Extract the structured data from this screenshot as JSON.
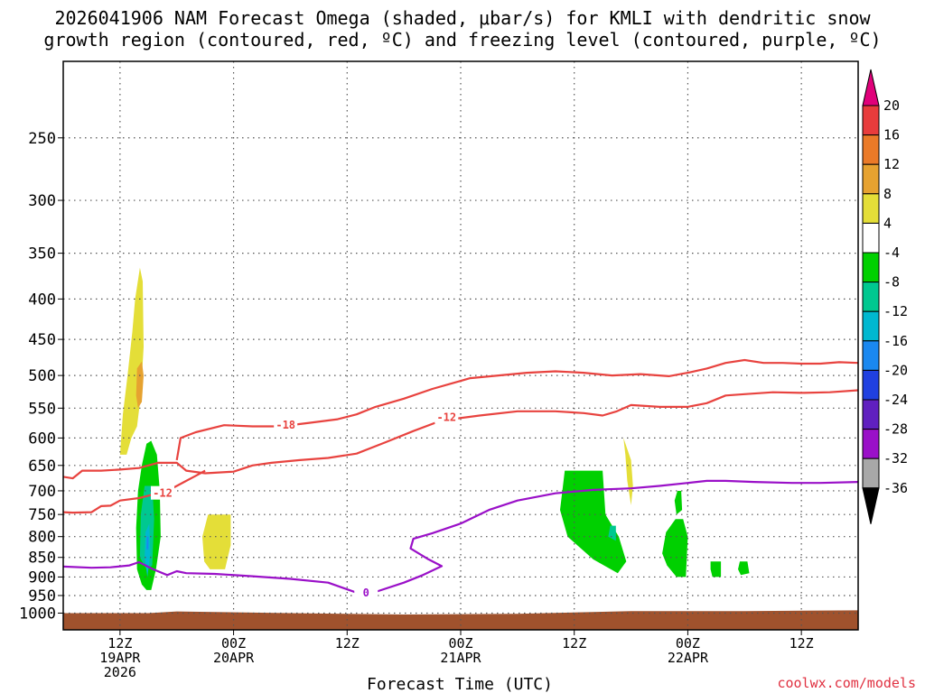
{
  "chart_data": {
    "type": "heatmap",
    "title_lines": [
      "2026041906 NAM Forecast Omega (shaded, μbar/s) for KMLI with dendritic snow",
      "growth region (contoured, red, ºC) and freezing level (contoured, purple, ºC)"
    ],
    "xlabel": "Forecast Time (UTC)",
    "credit": "coolwx.com/models",
    "x_unit": "forecast hour from 2026-04-19 06Z",
    "xlim": [
      0,
      84
    ],
    "x_ticks": [
      {
        "hour": 6,
        "lines": [
          "12Z",
          "19APR",
          "2026"
        ]
      },
      {
        "hour": 18,
        "lines": [
          "00Z",
          "20APR"
        ]
      },
      {
        "hour": 30,
        "lines": [
          "12Z"
        ]
      },
      {
        "hour": 42,
        "lines": [
          "00Z",
          "21APR"
        ]
      },
      {
        "hour": 54,
        "lines": [
          "12Z"
        ]
      },
      {
        "hour": 66,
        "lines": [
          "00Z",
          "22APR"
        ]
      },
      {
        "hour": 78,
        "lines": [
          "12Z"
        ]
      }
    ],
    "y_unit": "hPa",
    "y_scale": "log",
    "ylim": [
      1050,
      200
    ],
    "y_ticks": [
      250,
      300,
      350,
      400,
      450,
      500,
      550,
      600,
      650,
      700,
      750,
      800,
      850,
      900,
      950,
      1000
    ],
    "grid": true,
    "colorbar": {
      "position": "right",
      "ticks": [
        "20",
        "16",
        "12",
        "8",
        "4",
        "-4",
        "-8",
        "-12",
        "-16",
        "-20",
        "-24",
        "-28",
        "-32",
        "-36"
      ],
      "bins": [
        {
          "range": [
            20,
            null
          ],
          "color": "#e0007a"
        },
        {
          "range": [
            16,
            20
          ],
          "color": "#e83c3c"
        },
        {
          "range": [
            12,
            16
          ],
          "color": "#ea7a28"
        },
        {
          "range": [
            8,
            12
          ],
          "color": "#e6a230"
        },
        {
          "range": [
            4,
            8
          ],
          "color": "#e4de38"
        },
        {
          "range": [
            -4,
            4
          ],
          "color": "#ffffff"
        },
        {
          "range": [
            -8,
            -4
          ],
          "color": "#00d000"
        },
        {
          "range": [
            -12,
            -8
          ],
          "color": "#00c890"
        },
        {
          "range": [
            -16,
            -12
          ],
          "color": "#00b8d0"
        },
        {
          "range": [
            -20,
            -16
          ],
          "color": "#1a88f0"
        },
        {
          "range": [
            -24,
            -20
          ],
          "color": "#2040e0"
        },
        {
          "range": [
            -28,
            -24
          ],
          "color": "#6020c0"
        },
        {
          "range": [
            -32,
            -28
          ],
          "color": "#9a10c8"
        },
        {
          "range": [
            -36,
            -32
          ],
          "color": "#a8a8a8"
        },
        {
          "range": [
            null,
            -36
          ],
          "color": "#000000"
        }
      ]
    },
    "terrain": {
      "color": "#a0522d",
      "points": [
        [
          0,
          1000
        ],
        [
          9,
          1000
        ],
        [
          12,
          995
        ],
        [
          24,
          1000
        ],
        [
          36,
          1004
        ],
        [
          48,
          1002
        ],
        [
          60,
          994
        ],
        [
          72,
          994
        ],
        [
          84,
          992
        ]
      ]
    },
    "shaded_regions": [
      {
        "bin": "4 to 8",
        "color": "#e4de38",
        "points": [
          [
            6,
            630
          ],
          [
            6.3,
            560
          ],
          [
            6.8,
            500
          ],
          [
            7.3,
            440
          ],
          [
            7.6,
            400
          ],
          [
            8.1,
            365
          ],
          [
            8.4,
            380
          ],
          [
            8.5,
            460
          ],
          [
            8.2,
            530
          ],
          [
            7.8,
            580
          ],
          [
            7.2,
            600
          ],
          [
            6.7,
            630
          ]
        ]
      },
      {
        "bin": "8 to 12",
        "color": "#e6a230",
        "points": [
          [
            7.7,
            530
          ],
          [
            7.8,
            490
          ],
          [
            8.3,
            480
          ],
          [
            8.5,
            500
          ],
          [
            8.3,
            540
          ],
          [
            7.9,
            550
          ]
        ]
      },
      {
        "bin": "-4 to -8",
        "color": "#00d000",
        "points": [
          [
            7.8,
            880
          ],
          [
            7.7,
            780
          ],
          [
            7.9,
            700
          ],
          [
            8.3,
            650
          ],
          [
            8.8,
            610
          ],
          [
            9.3,
            605
          ],
          [
            9.9,
            630
          ],
          [
            10.2,
            700
          ],
          [
            10.3,
            800
          ],
          [
            9.8,
            880
          ],
          [
            9.3,
            935
          ],
          [
            8.8,
            935
          ],
          [
            8.3,
            920
          ]
        ]
      },
      {
        "bin": "-8 to -12",
        "color": "#00c890",
        "points": [
          [
            8.1,
            850
          ],
          [
            8.2,
            750
          ],
          [
            8.6,
            690
          ],
          [
            9.4,
            690
          ],
          [
            9.6,
            760
          ],
          [
            9.4,
            870
          ],
          [
            8.8,
            880
          ]
        ]
      },
      {
        "bin": "-12 to -16",
        "color": "#00b8d0",
        "points": [
          [
            8.6,
            850
          ],
          [
            8.7,
            790
          ],
          [
            9.1,
            770
          ],
          [
            9.2,
            840
          ],
          [
            8.9,
            900
          ]
        ]
      },
      {
        "bin": "-16 to -20",
        "color": "#1a88f0",
        "points": [
          [
            8.8,
            830
          ],
          [
            8.85,
            800
          ],
          [
            9.0,
            800
          ],
          [
            9.0,
            830
          ]
        ]
      },
      {
        "bin": "4 to 8",
        "color": "#e4de38",
        "points": [
          [
            14.9,
            860
          ],
          [
            14.7,
            800
          ],
          [
            15.3,
            750
          ],
          [
            17.7,
            750
          ],
          [
            17.7,
            820
          ],
          [
            17.1,
            880
          ],
          [
            15.5,
            880
          ]
        ]
      },
      {
        "bin": "-4 to -8",
        "color": "#00d000",
        "points": [
          [
            52.5,
            740
          ],
          [
            53,
            660
          ],
          [
            57,
            660
          ],
          [
            57.3,
            750
          ],
          [
            58.7,
            800
          ],
          [
            59.5,
            860
          ],
          [
            58.6,
            890
          ],
          [
            56,
            855
          ],
          [
            53.3,
            800
          ]
        ]
      },
      {
        "bin": "-8 to -12",
        "color": "#00c890",
        "points": [
          [
            57.6,
            800
          ],
          [
            57.8,
            775
          ],
          [
            58.4,
            775
          ],
          [
            58.4,
            810
          ]
        ]
      },
      {
        "bin": "4 to 8",
        "color": "#e4de38",
        "points": [
          [
            59.2,
            600
          ],
          [
            60.0,
            640
          ],
          [
            60.2,
            690
          ],
          [
            60.0,
            730
          ],
          [
            59.6,
            680
          ],
          [
            59.4,
            630
          ]
        ]
      },
      {
        "bin": "-4 to -8",
        "color": "#00d000",
        "points": [
          [
            63.3,
            840
          ],
          [
            63.7,
            790
          ],
          [
            64.7,
            760
          ],
          [
            65.5,
            760
          ],
          [
            66,
            800
          ],
          [
            65.8,
            900
          ],
          [
            64.8,
            900
          ],
          [
            63.8,
            870
          ]
        ]
      },
      {
        "bin": "-4 to -8",
        "color": "#00d000",
        "points": [
          [
            64.6,
            720
          ],
          [
            64.9,
            700
          ],
          [
            65.3,
            700
          ],
          [
            65.4,
            740
          ],
          [
            64.8,
            750
          ]
        ]
      },
      {
        "bin": "-4 to -8",
        "color": "#00d000",
        "points": [
          [
            68.4,
            880
          ],
          [
            68.4,
            860
          ],
          [
            69.5,
            860
          ],
          [
            69.5,
            900
          ],
          [
            68.6,
            900
          ]
        ]
      },
      {
        "bin": "-4 to -8",
        "color": "#00d000",
        "points": [
          [
            71.3,
            880
          ],
          [
            71.5,
            860
          ],
          [
            72.3,
            860
          ],
          [
            72.5,
            890
          ],
          [
            71.6,
            895
          ]
        ]
      }
    ],
    "contours": [
      {
        "name": "dendritic -18 ºC",
        "color": "#e8433f",
        "label": "-18",
        "label_at": [
          23.5,
          578
        ],
        "points": [
          [
            12,
            640
          ],
          [
            12.4,
            600
          ],
          [
            14,
            590
          ],
          [
            17,
            578
          ],
          [
            20,
            580
          ],
          [
            23,
            580
          ],
          [
            26,
            574
          ],
          [
            29,
            568
          ],
          [
            31,
            560
          ],
          [
            33,
            548
          ],
          [
            36,
            535
          ],
          [
            39,
            520
          ],
          [
            41,
            512
          ],
          [
            43,
            504
          ],
          [
            46,
            500
          ],
          [
            49,
            496
          ],
          [
            52,
            494
          ],
          [
            55,
            496
          ],
          [
            58,
            500
          ],
          [
            61,
            498
          ],
          [
            64,
            501
          ],
          [
            66,
            496
          ],
          [
            68,
            490
          ],
          [
            70,
            482
          ],
          [
            72,
            478
          ],
          [
            74,
            482
          ],
          [
            76,
            482
          ],
          [
            78,
            483
          ],
          [
            80,
            483
          ],
          [
            82,
            481
          ],
          [
            84,
            482
          ]
        ]
      },
      {
        "name": "dendritic -12 ºC",
        "color": "#e8433f",
        "label": "-12",
        "label_at": [
          40.5,
          565
        ],
        "points": [
          [
            0,
            672
          ],
          [
            1,
            675
          ],
          [
            2,
            660
          ],
          [
            4,
            660
          ],
          [
            6,
            658
          ],
          [
            8,
            655
          ],
          [
            10,
            645
          ],
          [
            12,
            645
          ],
          [
            13,
            660
          ],
          [
            15,
            665
          ],
          [
            18,
            662
          ],
          [
            20,
            650
          ],
          [
            22,
            645
          ],
          [
            25,
            640
          ],
          [
            28,
            636
          ],
          [
            31,
            628
          ],
          [
            34,
            608
          ],
          [
            37,
            588
          ],
          [
            40,
            570
          ],
          [
            44,
            562
          ],
          [
            48,
            555
          ],
          [
            52,
            555
          ],
          [
            55,
            558
          ],
          [
            57,
            562
          ],
          [
            58.5,
            555
          ],
          [
            60,
            545
          ],
          [
            63,
            548
          ],
          [
            66,
            548
          ],
          [
            68,
            542
          ],
          [
            70,
            530
          ],
          [
            72,
            528
          ],
          [
            75,
            525
          ],
          [
            78,
            526
          ],
          [
            81,
            525
          ],
          [
            84,
            522
          ]
        ]
      },
      {
        "name": "dendritic -12 ºC",
        "color": "#e8433f",
        "label": "-12",
        "label_at": [
          10.5,
          705
        ],
        "points": [
          [
            0,
            745
          ],
          [
            1,
            746
          ],
          [
            3,
            745
          ],
          [
            4,
            732
          ],
          [
            5,
            731
          ],
          [
            6,
            720
          ],
          [
            8,
            715
          ],
          [
            10,
            705
          ],
          [
            11,
            700
          ],
          [
            12,
            690
          ],
          [
            13,
            680
          ],
          [
            14,
            670
          ],
          [
            15,
            660
          ]
        ]
      },
      {
        "name": "freezing level 0 ºC",
        "color": "#9a10c8",
        "label": "0",
        "label_at": [
          32,
          942
        ],
        "points": [
          [
            0,
            873
          ],
          [
            3,
            876
          ],
          [
            5,
            875
          ],
          [
            7,
            870
          ],
          [
            8,
            862
          ],
          [
            9.5,
            880
          ],
          [
            11,
            895
          ],
          [
            12,
            885
          ],
          [
            13,
            890
          ],
          [
            16,
            892
          ],
          [
            20,
            898
          ],
          [
            24,
            905
          ],
          [
            28,
            915
          ],
          [
            31,
            942
          ],
          [
            33,
            940
          ],
          [
            36,
            915
          ],
          [
            38,
            895
          ],
          [
            40,
            872
          ],
          [
            38.6,
            855
          ],
          [
            36.7,
            828
          ],
          [
            37,
            805
          ],
          [
            39,
            792
          ],
          [
            42,
            770
          ],
          [
            45,
            740
          ],
          [
            48,
            720
          ],
          [
            52,
            705
          ],
          [
            56,
            698
          ],
          [
            60,
            695
          ],
          [
            63,
            690
          ],
          [
            66,
            684
          ],
          [
            68,
            680
          ],
          [
            70,
            680
          ],
          [
            73,
            682
          ],
          [
            77,
            684
          ],
          [
            80,
            684
          ],
          [
            84,
            682
          ]
        ]
      }
    ]
  }
}
